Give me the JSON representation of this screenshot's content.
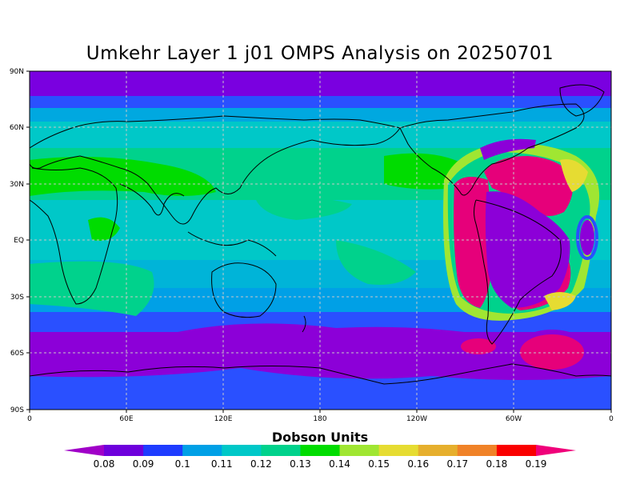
{
  "title": "Umkehr Layer 1 j01 OMPS Analysis on 20250701",
  "lat_labels": [
    "90N",
    "60N",
    "30N",
    "EQ",
    "30S",
    "60S",
    "90S"
  ],
  "lon_labels": [
    "0",
    "60E",
    "120E",
    "180",
    "120W",
    "60W",
    "0"
  ],
  "colorbar": {
    "title": "Dobson Units",
    "levels": [
      "0.08",
      "0.09",
      "0.1",
      "0.11",
      "0.12",
      "0.13",
      "0.14",
      "0.15",
      "0.16",
      "0.17",
      "0.18",
      "0.19"
    ],
    "colors": [
      "#a000c8",
      "#6e00dc",
      "#1e3cff",
      "#00a0e6",
      "#00c8c8",
      "#00d28c",
      "#00dc00",
      "#a0e632",
      "#e6dc32",
      "#e6af2d",
      "#f08228",
      "#fa0000",
      "#f0007a"
    ]
  },
  "field_colors": {
    "deep_purple": "#8c00d8",
    "purple": "#7800e0",
    "blue": "#2040ff",
    "light_blue": "#00a0e6",
    "cyan": "#00c8c8",
    "teal": "#00d28c",
    "green": "#00dc00",
    "yellow_green": "#a0e632",
    "yellow": "#e6dc32",
    "pink": "#e6007a",
    "coast": "#000000",
    "grid": "#c8c8c8"
  }
}
